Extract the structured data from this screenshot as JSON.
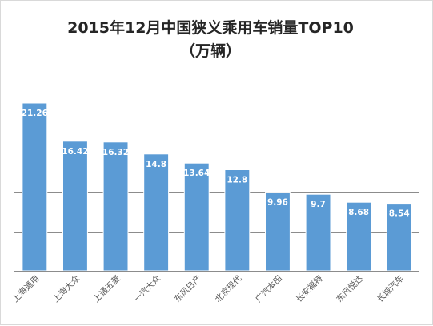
{
  "chart_data": {
    "type": "bar",
    "title": "2015年12月中国狭义乘用车销量TOP10",
    "subtitle": "（万辆）",
    "xlabel": "",
    "ylabel": "",
    "categories": [
      "上海通用",
      "上海大众",
      "上通五菱",
      "一汽大众",
      "东风日产",
      "北京现代",
      "广汽本田",
      "长安福特",
      "东风悦达",
      "长城汽车"
    ],
    "values": [
      21.26,
      16.42,
      16.32,
      14.8,
      13.64,
      12.8,
      9.96,
      9.7,
      8.68,
      8.54
    ],
    "data_labels": [
      "21.26",
      "16.42",
      "16.32",
      "14.8",
      "13.64",
      "12.8",
      "9.96",
      "9.7",
      "8.68",
      "8.54"
    ],
    "ylim": [
      0,
      25
    ],
    "y_gridlines": [
      5,
      10,
      15,
      20,
      25
    ],
    "grid": true,
    "legend": "none",
    "colors": {
      "bar": "#5b9bd5",
      "bar_label": "#ffffff",
      "grid": "#8c8c8c",
      "title": "#262626",
      "tick": "#595959"
    }
  }
}
